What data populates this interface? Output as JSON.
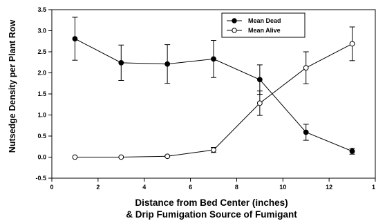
{
  "chart_data": {
    "type": "line",
    "xlabel_lines": [
      "Distance from Bed Center (inches)",
      "& Drip Fumigation Source of Fumigant"
    ],
    "ylabel": "Nutsedge Density per Plant Row",
    "xlim": [
      0,
      14
    ],
    "ylim": [
      -0.5,
      3.5
    ],
    "xticks": [
      "0",
      "2",
      "4",
      "6",
      "8",
      "10",
      "12",
      "1"
    ],
    "yticks": [
      "-0.5",
      "0.0",
      "0.5",
      "1.0",
      "1.5",
      "2.0",
      "2.5",
      "3.0",
      "3.5"
    ],
    "grid": false,
    "legend_position": "top-right",
    "x": [
      1,
      3,
      5,
      7,
      9,
      11,
      13
    ],
    "series": [
      {
        "name": "Mean Dead",
        "marker": "filled-circle",
        "values": [
          2.81,
          2.24,
          2.21,
          2.33,
          1.84,
          0.59,
          0.14
        ],
        "errors": [
          0.51,
          0.42,
          0.46,
          0.44,
          0.35,
          0.19,
          0.07
        ]
      },
      {
        "name": "Mean  Alive",
        "marker": "open-circle",
        "values": [
          0.0,
          0.0,
          0.02,
          0.17,
          1.28,
          2.12,
          2.69
        ],
        "errors": [
          0.0,
          0.0,
          0.02,
          0.06,
          0.29,
          0.38,
          0.4
        ]
      }
    ]
  }
}
